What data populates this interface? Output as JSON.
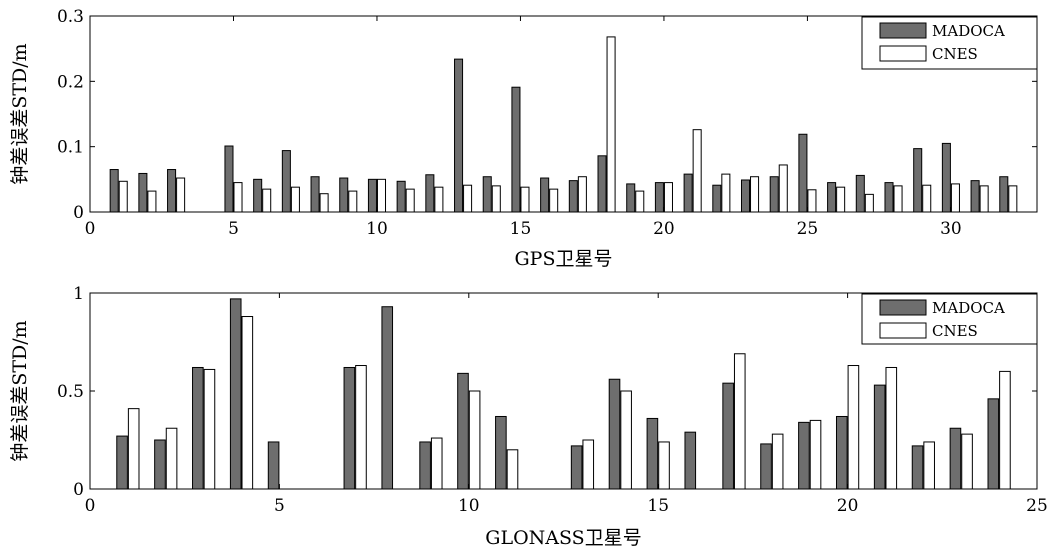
{
  "chart_data": [
    {
      "type": "bar",
      "xlabel": "GPS卫星号",
      "ylabel": "钟差误差STD/m",
      "xlim": [
        0,
        33
      ],
      "ylim": [
        0,
        0.3
      ],
      "xticks": [
        0,
        5,
        10,
        15,
        20,
        25,
        30
      ],
      "yticks": [
        0,
        0.1,
        0.2,
        0.3
      ],
      "yticklabels": [
        "0",
        "0.1",
        "0.2",
        "0.3"
      ],
      "legend_position": "top-right",
      "categories": [
        1,
        2,
        3,
        4,
        5,
        6,
        7,
        8,
        9,
        10,
        11,
        12,
        13,
        14,
        15,
        16,
        17,
        18,
        19,
        20,
        21,
        22,
        23,
        24,
        25,
        26,
        27,
        28,
        29,
        30,
        31,
        32
      ],
      "series": [
        {
          "name": "MADOCA",
          "color": "#6e6e6e",
          "values": [
            0.065,
            0.059,
            0.065,
            0,
            0.101,
            0.05,
            0.094,
            0.054,
            0.052,
            0.05,
            0.047,
            0.057,
            0.234,
            0.054,
            0.191,
            0.052,
            0.048,
            0.086,
            0.043,
            0.045,
            0.058,
            0.041,
            0.049,
            0.054,
            0.119,
            0.045,
            0.056,
            0.045,
            0.097,
            0.105,
            0.048,
            0.054
          ]
        },
        {
          "name": "CNES",
          "color": "#ffffff",
          "values": [
            0.047,
            0.032,
            0.052,
            0,
            0.045,
            0.035,
            0.038,
            0.028,
            0.032,
            0.05,
            0.035,
            0.038,
            0.041,
            0.04,
            0.038,
            0.035,
            0.054,
            0.268,
            0.032,
            0.045,
            0.126,
            0.058,
            0.054,
            0.072,
            0.034,
            0.038,
            0.027,
            0.04,
            0.041,
            0.043,
            0.04,
            0.04
          ]
        }
      ]
    },
    {
      "type": "bar",
      "xlabel": "GLONASS卫星号",
      "ylabel": "钟差误差STD/m",
      "xlim": [
        0,
        25
      ],
      "ylim": [
        0,
        1
      ],
      "xticks": [
        0,
        5,
        10,
        15,
        20,
        25
      ],
      "yticks": [
        0,
        0.5,
        1
      ],
      "yticklabels": [
        "0",
        "0.5",
        "1"
      ],
      "legend_position": "top-right",
      "categories": [
        1,
        2,
        3,
        4,
        5,
        6,
        7,
        8,
        9,
        10,
        11,
        12,
        13,
        14,
        15,
        16,
        17,
        18,
        19,
        20,
        21,
        22,
        23,
        24
      ],
      "series": [
        {
          "name": "MADOCA",
          "color": "#6e6e6e",
          "values": [
            0.27,
            0.25,
            0.62,
            0.97,
            0.24,
            0,
            0.62,
            0.93,
            0.24,
            0.59,
            0.37,
            0,
            0.22,
            0.56,
            0.36,
            0.29,
            0.54,
            0.23,
            0.34,
            0.37,
            0.53,
            0.22,
            0.31,
            0.46
          ]
        },
        {
          "name": "CNES",
          "color": "#ffffff",
          "values": [
            0.41,
            0.31,
            0.61,
            0.88,
            0,
            0,
            0.63,
            0,
            0.26,
            0.5,
            0.2,
            0,
            0.25,
            0.5,
            0.24,
            0,
            0.69,
            0.28,
            0.35,
            0.63,
            0.62,
            0.24,
            0.28,
            0.6
          ]
        }
      ]
    }
  ]
}
